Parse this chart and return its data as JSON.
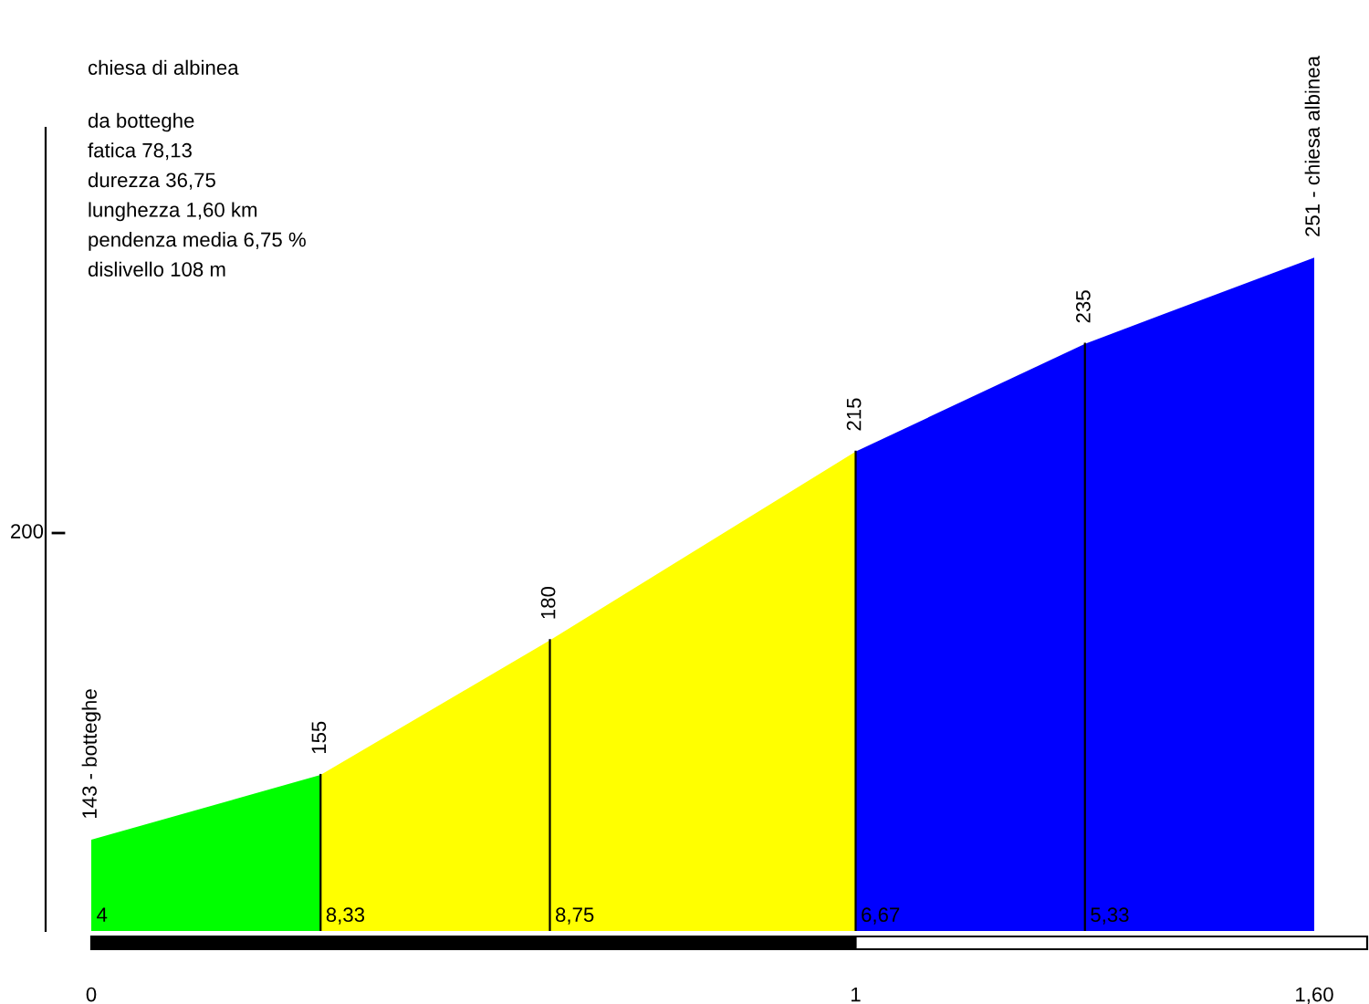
{
  "chart_data": {
    "type": "area",
    "title": "chiesa di albinea",
    "annotations": [
      "da botteghe",
      "fatica 78,13",
      "durezza 36,75",
      "lunghezza 1,60 km",
      "pendenza media 6,75 %",
      "dislivello 108 m",
      "200",
      "4",
      "8,33",
      "8,75",
      "6,67",
      "5,33"
    ],
    "xlim": [
      0,
      1.6
    ],
    "series": [
      {
        "color": "#00ff00",
        "x": [
          0,
          0.3
        ],
        "values": [
          143,
          155
        ],
        "value_labels": [
          "143 - botteghe",
          null
        ]
      },
      {
        "color": "#ffff00",
        "x": [
          0.3,
          0.6,
          1.0
        ],
        "values": [
          155,
          180,
          215
        ],
        "value_labels": [
          "155",
          "180",
          null
        ]
      },
      {
        "color": "#0000ff",
        "x": [
          1.0,
          1.3,
          1.6
        ],
        "values": [
          215,
          235,
          251
        ],
        "value_labels": [
          "215",
          "235",
          "251 - chiesa albinea"
        ]
      }
    ],
    "xticks": [
      {
        "value": 0,
        "label": "0"
      },
      {
        "value": 1,
        "label": "1"
      },
      {
        "value": 1.6,
        "label": "1,60"
      }
    ],
    "grid": false,
    "legend": false
  }
}
